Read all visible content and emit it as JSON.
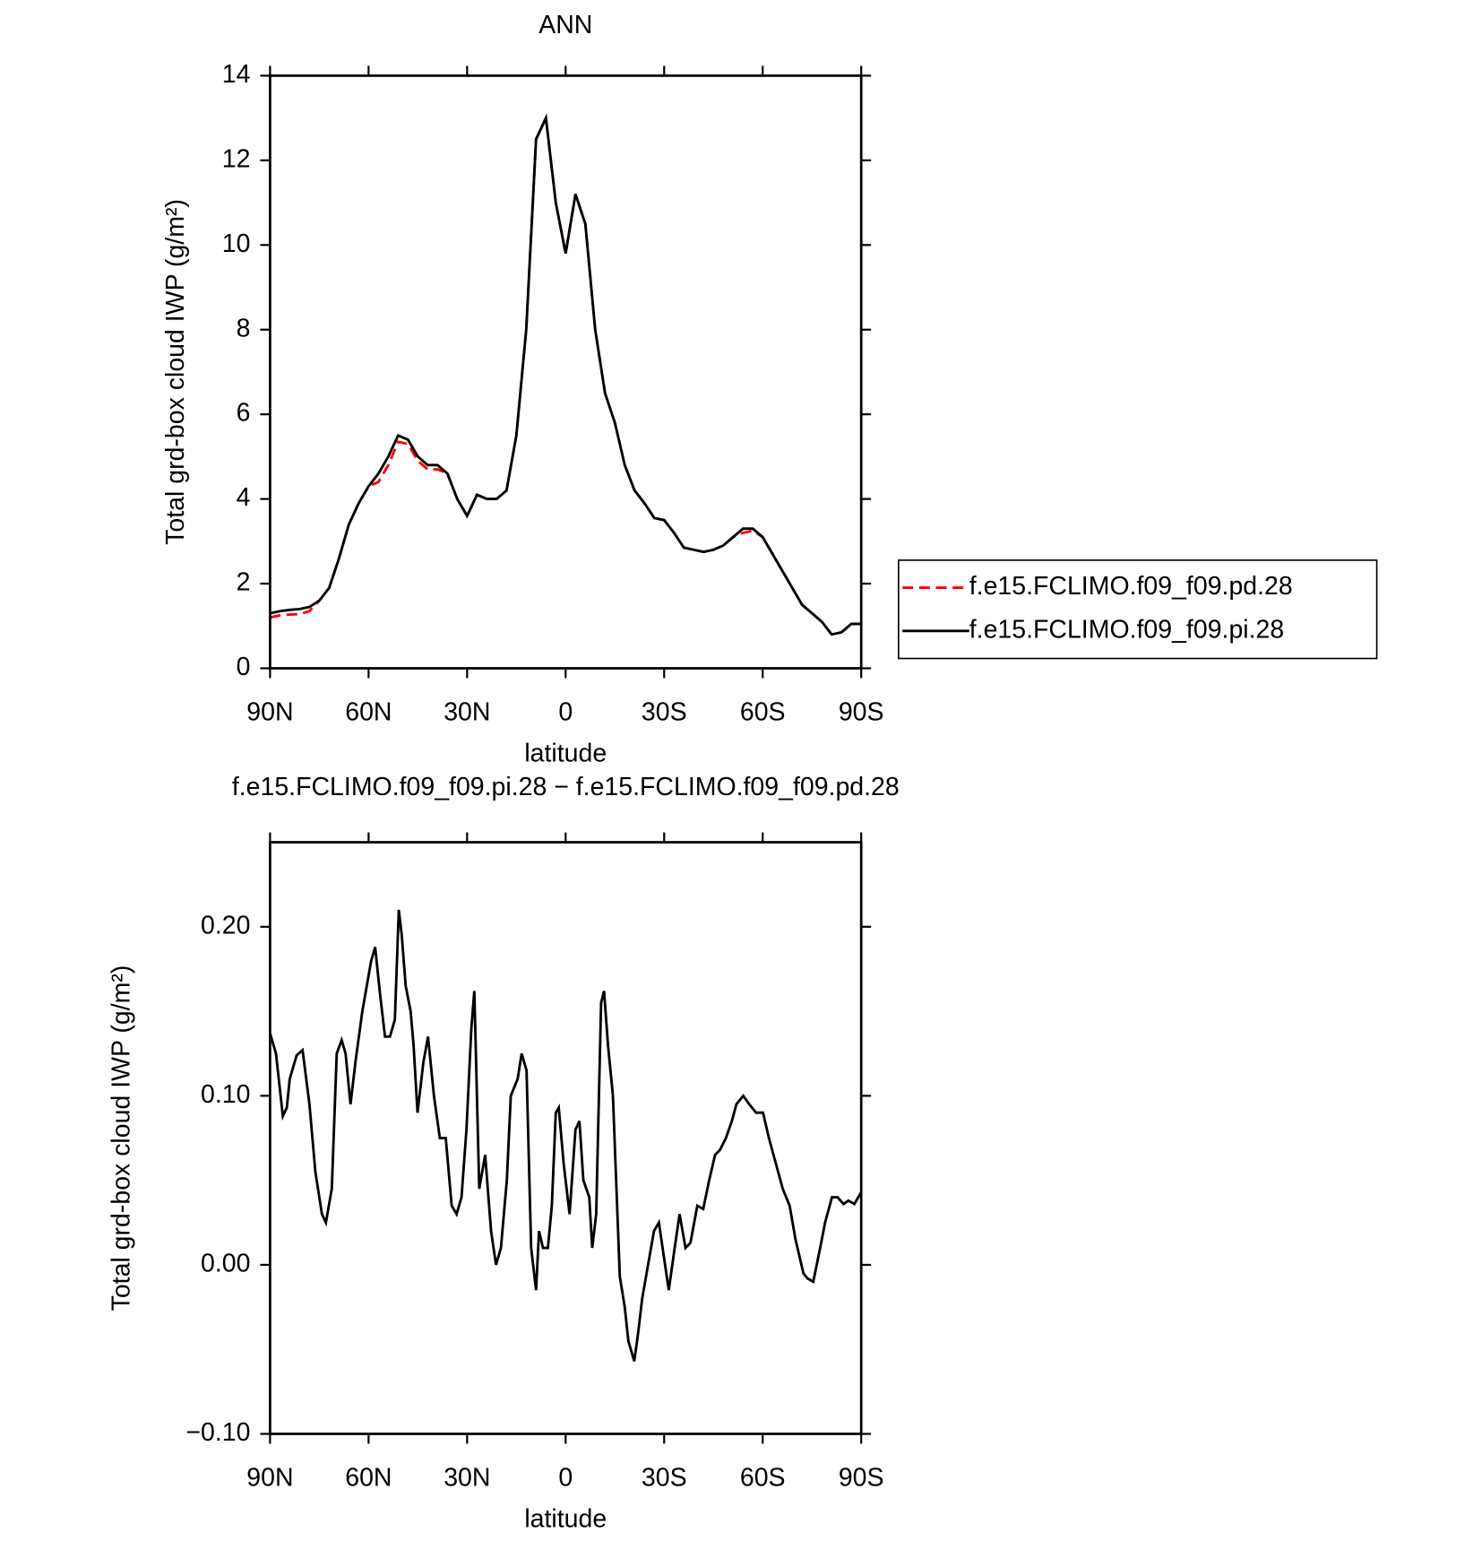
{
  "chart_data": [
    {
      "type": "line",
      "title": "ANN",
      "xlabel": "latitude",
      "ylabel": "Total grd-box cloud IWP (g/m²)",
      "xlim": [
        90,
        -90
      ],
      "xticks": [
        {
          "value": 90,
          "label": "90N"
        },
        {
          "value": 60,
          "label": "60N"
        },
        {
          "value": 30,
          "label": "30N"
        },
        0,
        {
          "value": -30,
          "label": "30S"
        },
        {
          "value": -60,
          "label": "60S"
        },
        {
          "value": -90,
          "label": "90S"
        }
      ],
      "ylim": [
        0,
        14
      ],
      "yticks": [
        0,
        2,
        4,
        6,
        8,
        10,
        12,
        14
      ],
      "legend": "outside-right",
      "x": [
        90,
        87,
        84,
        81,
        78,
        75,
        72,
        69,
        66,
        63,
        60,
        57,
        54,
        51,
        48,
        45,
        42,
        39,
        36,
        33,
        30,
        27,
        24,
        21,
        18,
        15,
        12,
        9,
        6,
        3,
        0,
        -3,
        -6,
        -9,
        -12,
        -15,
        -18,
        -21,
        -24,
        -27,
        -30,
        -33,
        -36,
        -39,
        -42,
        -45,
        -48,
        -51,
        -54,
        -57,
        -60,
        -63,
        -66,
        -69,
        -72,
        -75,
        -78,
        -81,
        -84,
        -87,
        -90
      ],
      "series": [
        {
          "name": "f.e15.FCLIMO.f09_f09.pd.28",
          "color": "#ff0000",
          "line_style": "dashed",
          "values": [
            1.2,
            1.25,
            1.27,
            1.28,
            1.35,
            1.6,
            1.9,
            2.6,
            3.4,
            3.9,
            4.3,
            4.4,
            4.8,
            5.35,
            5.3,
            4.9,
            4.7,
            4.7,
            4.6,
            4.0,
            3.6,
            4.1,
            4.0,
            4.0,
            4.2,
            5.5,
            8.0,
            12.5,
            13.0,
            11.0,
            9.8,
            11.2,
            10.5,
            8.0,
            6.5,
            5.8,
            4.8,
            4.2,
            3.9,
            3.55,
            3.5,
            3.2,
            2.85,
            2.8,
            2.75,
            2.8,
            2.9,
            3.1,
            3.2,
            3.25,
            3.1,
            2.7,
            2.3,
            1.9,
            1.5,
            1.3,
            1.1,
            0.8,
            0.85,
            1.05,
            1.05
          ]
        },
        {
          "name": "f.e15.FCLIMO.f09_f09.pi.28",
          "color": "#000000",
          "line_style": "solid",
          "values": [
            1.3,
            1.35,
            1.38,
            1.4,
            1.45,
            1.6,
            1.9,
            2.6,
            3.4,
            3.9,
            4.3,
            4.6,
            5.0,
            5.5,
            5.4,
            5.0,
            4.8,
            4.8,
            4.6,
            4.0,
            3.6,
            4.1,
            4.0,
            4.0,
            4.2,
            5.5,
            8.0,
            12.5,
            13.0,
            11.0,
            9.8,
            11.2,
            10.5,
            8.0,
            6.5,
            5.8,
            4.8,
            4.2,
            3.9,
            3.55,
            3.5,
            3.2,
            2.85,
            2.8,
            2.75,
            2.8,
            2.9,
            3.1,
            3.3,
            3.3,
            3.1,
            2.7,
            2.3,
            1.9,
            1.5,
            1.3,
            1.1,
            0.8,
            0.85,
            1.05,
            1.05
          ]
        }
      ]
    },
    {
      "type": "line",
      "title": "f.e15.FCLIMO.f09_f09.pi.28 − f.e15.FCLIMO.f09_f09.pd.28",
      "xlabel": "latitude",
      "ylabel": "Total grd-box cloud IWP (g/m²)",
      "xlim": [
        90,
        -90
      ],
      "xticks": [
        {
          "value": 90,
          "label": "90N"
        },
        {
          "value": 60,
          "label": "60N"
        },
        {
          "value": 30,
          "label": "30N"
        },
        0,
        {
          "value": -30,
          "label": "30S"
        },
        {
          "value": -60,
          "label": "60S"
        },
        {
          "value": -90,
          "label": "90S"
        }
      ],
      "ylim": [
        -0.1,
        0.25
      ],
      "yticks": [
        {
          "value": -0.1,
          "label": "−0.10"
        },
        {
          "value": 0,
          "label": "0.00"
        },
        {
          "value": 0.1,
          "label": "0.10"
        },
        {
          "value": 0.2,
          "label": "0.20"
        }
      ],
      "x": [
        90,
        88.2,
        86.1,
        84.9,
        84,
        81.9,
        80.1,
        78,
        76.2,
        74.2,
        73,
        71.2,
        69.7,
        68.2,
        67,
        65.5,
        64,
        61.9,
        59.2,
        58,
        56.5,
        55,
        53.5,
        52,
        50.8,
        49.9,
        48.7,
        47.2,
        46.3,
        45.1,
        43.3,
        41.9,
        40.1,
        38.3,
        36.5,
        34.7,
        33.2,
        31.7,
        30.2,
        28.7,
        27.8,
        26.3,
        24.5,
        22.7,
        21.2,
        19.7,
        17.9,
        16.7,
        14.6,
        13.4,
        11.9,
        10.5,
        9,
        8.1,
        6.9,
        5.4,
        4.2,
        3,
        2.1,
        0.6,
        -1.2,
        -3,
        -4.2,
        -5.4,
        -7.2,
        -8.1,
        -9.3,
        -10.8,
        -11.7,
        -12.9,
        -14.4,
        -16.5,
        -18,
        -19.1,
        -20.9,
        -22.1,
        -23.3,
        -25.1,
        -26.9,
        -28.4,
        -29.9,
        -31.4,
        -33.2,
        -34.7,
        -36.5,
        -38,
        -40.1,
        -41.9,
        -43.7,
        -45.5,
        -47,
        -48.8,
        -50.6,
        -52,
        -54.1,
        -55.9,
        -58,
        -60.1,
        -61.9,
        -64,
        -66.1,
        -68.2,
        -70,
        -72.4,
        -73.6,
        -75.4,
        -77.5,
        -79,
        -81.1,
        -82.8,
        -84.6,
        -86.1,
        -87.9,
        -90
      ],
      "series": [
        {
          "color": "#000000",
          "line_style": "solid",
          "values": [
            0.137,
            0.125,
            0.088,
            0.093,
            0.11,
            0.124,
            0.127,
            0.095,
            0.055,
            0.03,
            0.025,
            0.045,
            0.125,
            0.133,
            0.125,
            0.095,
            0.12,
            0.15,
            0.18,
            0.188,
            0.16,
            0.135,
            0.135,
            0.145,
            0.21,
            0.195,
            0.165,
            0.15,
            0.13,
            0.09,
            0.12,
            0.135,
            0.1,
            0.075,
            0.075,
            0.035,
            0.03,
            0.04,
            0.08,
            0.14,
            0.162,
            0.045,
            0.065,
            0.02,
            0.0,
            0.01,
            0.05,
            0.1,
            0.11,
            0.125,
            0.115,
            0.01,
            -0.015,
            0.02,
            0.01,
            0.01,
            0.035,
            0.09,
            0.093,
            0.06,
            0.03,
            0.08,
            0.085,
            0.05,
            0.04,
            0.01,
            0.03,
            0.155,
            0.162,
            0.13,
            0.1,
            -0.007,
            -0.025,
            -0.045,
            -0.057,
            -0.04,
            -0.02,
            0.0,
            0.02,
            0.025,
            0.005,
            -0.015,
            0.01,
            0.03,
            0.01,
            0.013,
            0.035,
            0.033,
            0.05,
            0.065,
            0.068,
            0.075,
            0.085,
            0.095,
            0.1,
            0.095,
            0.09,
            0.09,
            0.075,
            0.06,
            0.045,
            0.035,
            0.015,
            -0.005,
            -0.008,
            -0.01,
            0.01,
            0.025,
            0.04,
            0.04,
            0.036,
            0.038,
            0.036,
            0.043
          ]
        }
      ]
    }
  ]
}
